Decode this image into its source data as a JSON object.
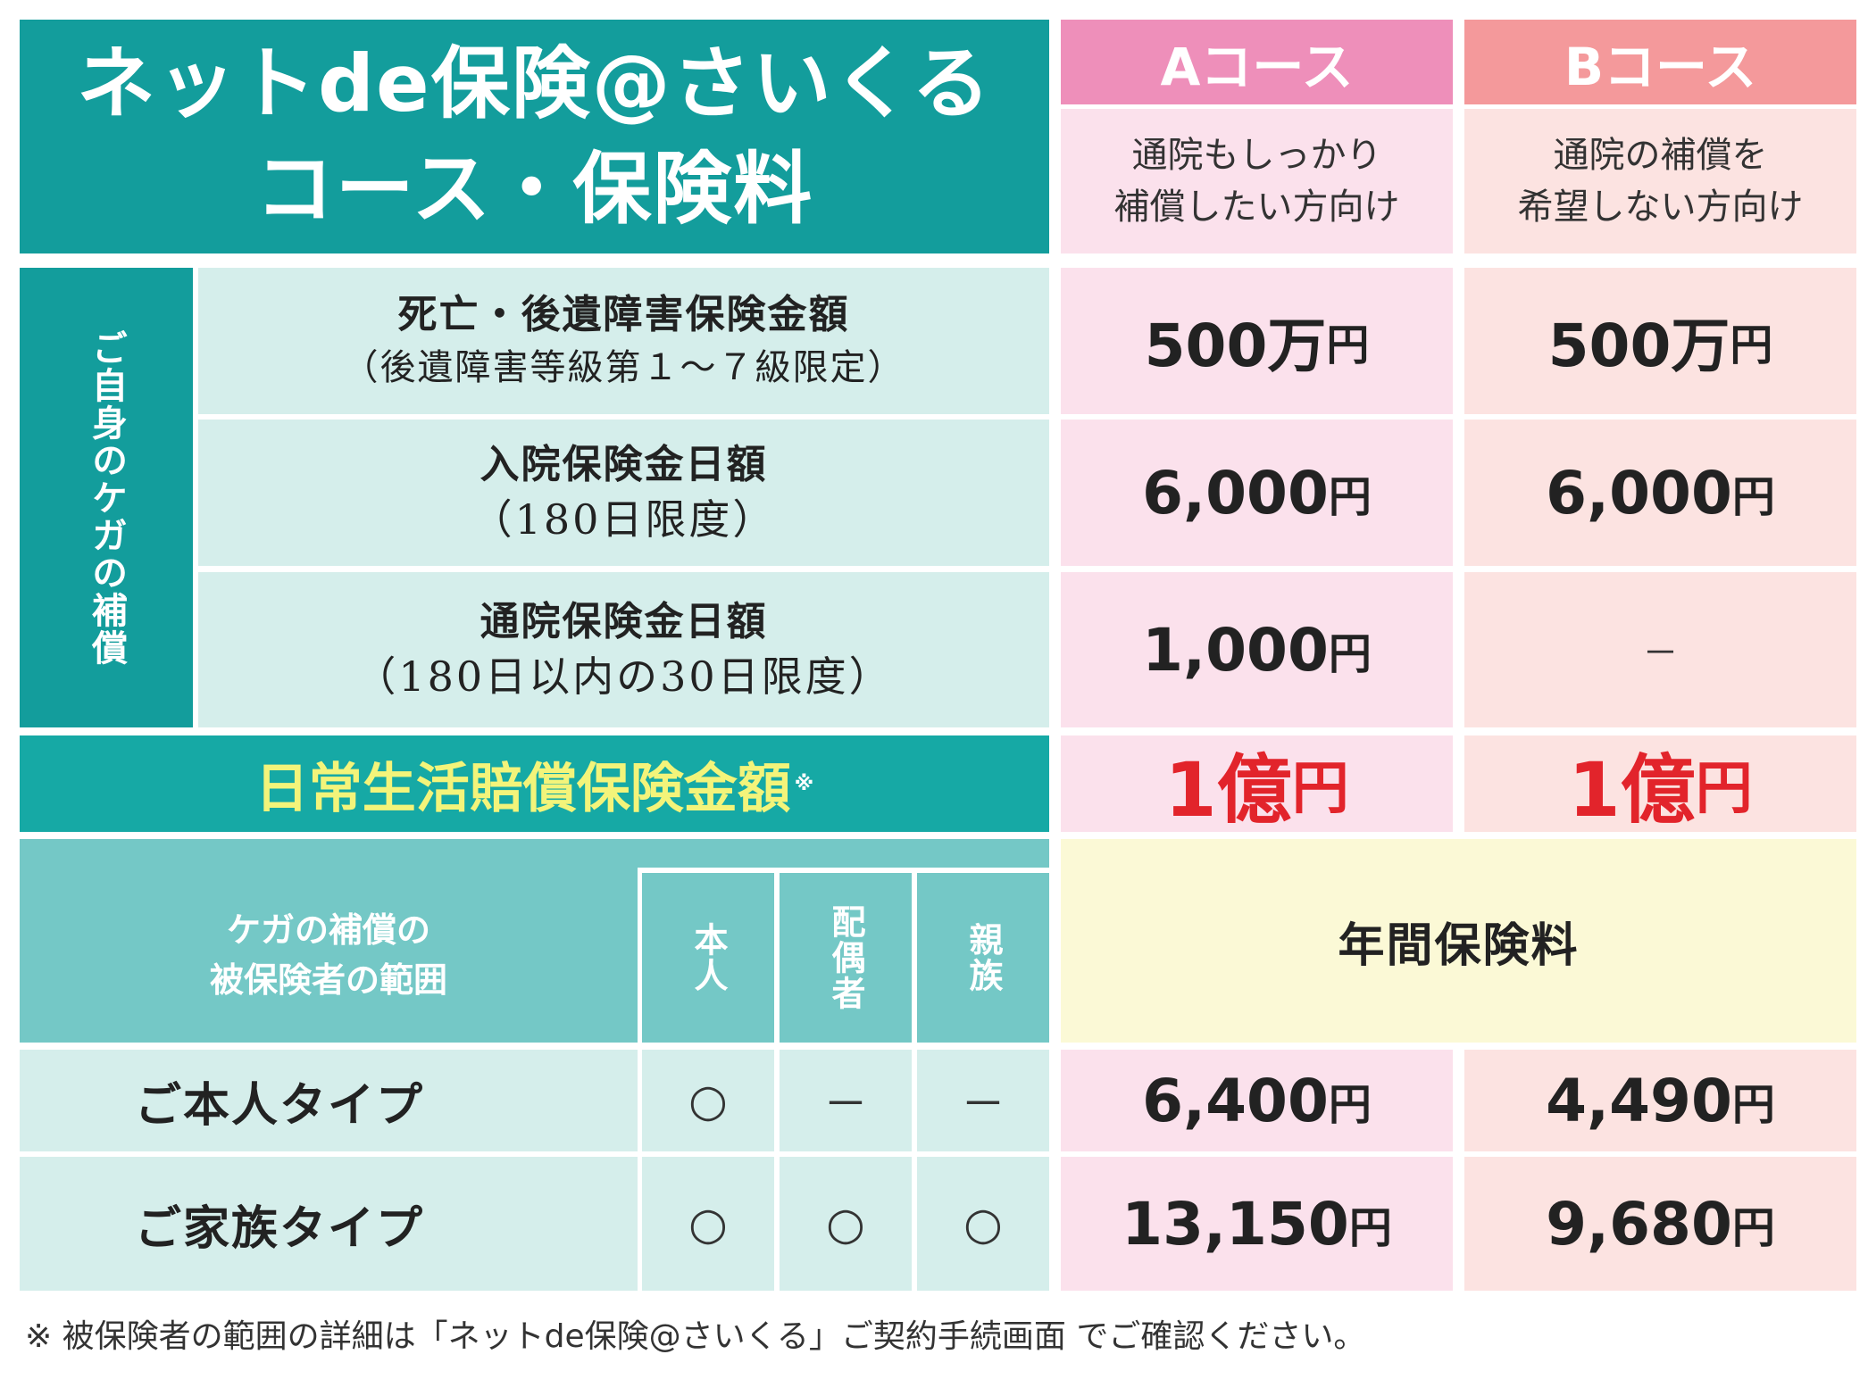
{
  "title": {
    "line1": "ネットde保険@さいくる",
    "line2": "コース・保険料"
  },
  "courses": [
    {
      "name": "Aコース",
      "desc_line1": "通院もしっかり",
      "desc_line2": "補償したい方向け"
    },
    {
      "name": "Bコース",
      "desc_line1": "通院の補償を",
      "desc_line2": "希望しない方向け"
    }
  ],
  "injury_section_label": "ご自身のケガの補償",
  "coverage_items": [
    {
      "main": "死亡・後遺障害保険金額",
      "sub": "（後遺障害等級第１～７級限定）",
      "a": "500万",
      "b": "500万"
    },
    {
      "main": "入院保険金日額",
      "sub": "（180日限度）",
      "a": "6,000",
      "b": "6,000"
    },
    {
      "main": "通院保険金日額",
      "sub": "（180日以内の30日限度）",
      "a": "1,000",
      "b": "－"
    }
  ],
  "yen_unit": "円",
  "liability": {
    "label": "日常生活賠償保険金額",
    "mark": "※",
    "a": "1億",
    "b": "1億"
  },
  "scope": {
    "header_line1": "ケガの補償の",
    "header_line2": "被保険者の範囲",
    "columns": [
      "本人",
      "配偶者",
      "親族"
    ],
    "annual_premium_label": "年間保険料"
  },
  "plans": [
    {
      "name": "ご本人タイプ",
      "marks": [
        "○",
        "－",
        "－"
      ],
      "a": "6,400",
      "b": "4,490"
    },
    {
      "name": "ご家族タイプ",
      "marks": [
        "○",
        "○",
        "○"
      ],
      "a": "13,150",
      "b": "9,680"
    }
  ],
  "footnote": "※ 被保険者の範囲の詳細は「ネットde保険@さいくる」ご契約手続画面 でご確認ください。"
}
